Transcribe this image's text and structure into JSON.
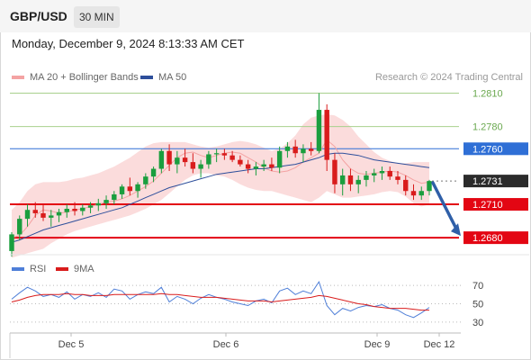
{
  "header": {
    "symbol": "GBP/USD",
    "timeframe": "30 MIN"
  },
  "timestamp": "Monday, December 9, 2024 8:13:33 AM CET",
  "copyright": "Research © 2024 Trading Central",
  "colors": {
    "bollinger": "#f4a3a3",
    "ma50": "#2e4f9b",
    "support": "#e30613",
    "resistance_line": "#a8d08d",
    "resistance_text": "#6aa84f",
    "pivot": "#2f6fd6",
    "candle_up": "#1a9e3e",
    "candle_down": "#d91c1c",
    "rsi": "#4f7fd8",
    "rsi_ma": "#d91c1c"
  },
  "chart_data": [
    {
      "type": "line",
      "title": "",
      "legend": [
        {
          "label": "MA 20 + Bollinger Bands",
          "color": "#f4a3a3"
        },
        {
          "label": "MA 50",
          "color": "#2e4f9b"
        }
      ],
      "x_ticks": [
        "Dec 5",
        "Dec 6",
        "Dec 9",
        "Dec 12"
      ],
      "ylim": [
        1.2655,
        1.2825
      ],
      "levels": [
        {
          "value": 1.281,
          "label": "1.2810",
          "kind": "resistance"
        },
        {
          "value": 1.278,
          "label": "1.2780",
          "kind": "resistance"
        },
        {
          "value": 1.276,
          "label": "1.2760",
          "kind": "pivot"
        },
        {
          "value": 1.2731,
          "label": "1.2731",
          "kind": "last"
        },
        {
          "value": 1.271,
          "label": "1.2710",
          "kind": "support"
        },
        {
          "value": 1.268,
          "label": "1.2680",
          "kind": "support"
        }
      ],
      "series": [
        {
          "values": [
            1.268,
            1.2682,
            1.269,
            1.27,
            1.2705,
            1.2704,
            1.2702,
            1.2703,
            1.2705,
            1.2706,
            1.2708,
            1.271,
            1.2712,
            1.2713,
            1.2715,
            1.2718,
            1.2722,
            1.2726,
            1.2731,
            1.2738,
            1.2745,
            1.2752,
            1.2756,
            1.2757,
            1.2754,
            1.2752,
            1.2754,
            1.2756,
            1.2757,
            1.2756,
            1.2752,
            1.2748,
            1.2743,
            1.274,
            1.2739,
            1.274,
            1.2743,
            1.2748,
            1.2752,
            1.2756,
            1.2768,
            1.2762,
            1.275,
            1.2742,
            1.2738,
            1.2737,
            1.2738,
            1.2739,
            1.274,
            1.2739,
            1.2736,
            1.2732,
            1.2729,
            1.273
          ]
        },
        {
          "values": [
            1.2676,
            1.2678,
            1.2681,
            1.2684,
            1.2687,
            1.2689,
            1.2691,
            1.2693,
            1.2695,
            1.2697,
            1.2699,
            1.2701,
            1.2703,
            1.2705,
            1.2707,
            1.271,
            1.2713,
            1.2716,
            1.2719,
            1.2722,
            1.2725,
            1.2727,
            1.2729,
            1.2731,
            1.2733,
            1.2735,
            1.2737,
            1.2738,
            1.2739,
            1.274,
            1.2741,
            1.2742,
            1.2742,
            1.2743,
            1.2744,
            1.2745,
            1.2746,
            1.2748,
            1.275,
            1.2752,
            1.2755,
            1.2756,
            1.2756,
            1.2755,
            1.2754,
            1.2752,
            1.275,
            1.2749,
            1.2748,
            1.2747,
            1.2746,
            1.2745,
            1.2744,
            1.2743
          ]
        }
      ],
      "bands_upper": [
        1.2705,
        1.2712,
        1.2722,
        1.2728,
        1.273,
        1.273,
        1.273,
        1.2731,
        1.2733,
        1.2734,
        1.2736,
        1.2738,
        1.2741,
        1.2744,
        1.2748,
        1.2752,
        1.2757,
        1.2762,
        1.2765,
        1.2766,
        1.2766,
        1.2766,
        1.2766,
        1.2764,
        1.2762,
        1.2761,
        1.2762,
        1.2764,
        1.2766,
        1.2767,
        1.2766,
        1.2764,
        1.2761,
        1.2758,
        1.276,
        1.2765,
        1.2772,
        1.2782,
        1.2788,
        1.279,
        1.2791,
        1.279,
        1.2786,
        1.278,
        1.2771,
        1.2764,
        1.2757,
        1.2752,
        1.2749,
        1.2747,
        1.2747,
        1.2748,
        1.2748,
        1.2748
      ],
      "bands_lower": [
        1.2662,
        1.2664,
        1.2666,
        1.2668,
        1.267,
        1.2675,
        1.2679,
        1.2683,
        1.2686,
        1.2688,
        1.269,
        1.2692,
        1.2694,
        1.2696,
        1.2698,
        1.27,
        1.2703,
        1.2706,
        1.271,
        1.2714,
        1.272,
        1.2726,
        1.2732,
        1.2736,
        1.2738,
        1.2738,
        1.2736,
        1.2735,
        1.2732,
        1.2728,
        1.2725,
        1.2723,
        1.2722,
        1.2722,
        1.272,
        1.2718,
        1.2716,
        1.2714,
        1.2712,
        1.2716,
        1.2722,
        1.2719,
        1.2716,
        1.2716,
        1.2717,
        1.2718,
        1.2719,
        1.2721,
        1.2722,
        1.2721,
        1.2717,
        1.2711,
        1.2708,
        1.271
      ],
      "candles": [
        [
          1.2668,
          1.2685,
          1.2663,
          1.2683
        ],
        [
          1.2683,
          1.27,
          1.2678,
          1.2697
        ],
        [
          1.2697,
          1.271,
          1.269,
          1.2705
        ],
        [
          1.2705,
          1.2712,
          1.2698,
          1.2702
        ],
        [
          1.2702,
          1.271,
          1.2695,
          1.2698
        ],
        [
          1.2698,
          1.2705,
          1.269,
          1.27
        ],
        [
          1.27,
          1.2706,
          1.2694,
          1.2703
        ],
        [
          1.2703,
          1.271,
          1.2698,
          1.2706
        ],
        [
          1.2706,
          1.2712,
          1.27,
          1.2704
        ],
        [
          1.2704,
          1.271,
          1.27,
          1.2707
        ],
        [
          1.2707,
          1.2712,
          1.2702,
          1.2709
        ],
        [
          1.2709,
          1.2715,
          1.2704,
          1.2711
        ],
        [
          1.2711,
          1.2718,
          1.2706,
          1.2714
        ],
        [
          1.2714,
          1.2722,
          1.271,
          1.2719
        ],
        [
          1.2719,
          1.2728,
          1.2715,
          1.2726
        ],
        [
          1.2726,
          1.2734,
          1.2718,
          1.2722
        ],
        [
          1.2722,
          1.273,
          1.2716,
          1.2728
        ],
        [
          1.2728,
          1.2738,
          1.2724,
          1.2735
        ],
        [
          1.2735,
          1.2744,
          1.273,
          1.2742
        ],
        [
          1.2742,
          1.276,
          1.2738,
          1.2758
        ],
        [
          1.2758,
          1.2764,
          1.274,
          1.2746
        ],
        [
          1.2746,
          1.2758,
          1.2738,
          1.2752
        ],
        [
          1.2752,
          1.276,
          1.2744,
          1.2748
        ],
        [
          1.2748,
          1.2756,
          1.2738,
          1.2742
        ],
        [
          1.2742,
          1.275,
          1.2734,
          1.2746
        ],
        [
          1.2746,
          1.2758,
          1.2742,
          1.2755
        ],
        [
          1.2755,
          1.276,
          1.2748,
          1.2756
        ],
        [
          1.2756,
          1.276,
          1.275,
          1.2754
        ],
        [
          1.2754,
          1.2758,
          1.2748,
          1.275
        ],
        [
          1.275,
          1.2754,
          1.2744,
          1.2746
        ],
        [
          1.2746,
          1.275,
          1.2738,
          1.2742
        ],
        [
          1.2742,
          1.2748,
          1.2736,
          1.2744
        ],
        [
          1.2744,
          1.275,
          1.274,
          1.2746
        ],
        [
          1.2746,
          1.2752,
          1.274,
          1.2743
        ],
        [
          1.2743,
          1.2762,
          1.2738,
          1.2758
        ],
        [
          1.2758,
          1.2766,
          1.2752,
          1.2762
        ],
        [
          1.2762,
          1.2768,
          1.2752,
          1.2756
        ],
        [
          1.2756,
          1.2764,
          1.2748,
          1.276
        ],
        [
          1.276,
          1.2766,
          1.2754,
          1.2758
        ],
        [
          1.2758,
          1.281,
          1.2756,
          1.2795
        ],
        [
          1.2795,
          1.28,
          1.274,
          1.275
        ],
        [
          1.275,
          1.2756,
          1.272,
          1.2728
        ],
        [
          1.2728,
          1.2742,
          1.2718,
          1.2736
        ],
        [
          1.2736,
          1.2742,
          1.2722,
          1.2728
        ],
        [
          1.2728,
          1.2736,
          1.272,
          1.2732
        ],
        [
          1.2732,
          1.274,
          1.2726,
          1.2736
        ],
        [
          1.2736,
          1.2742,
          1.273,
          1.2738
        ],
        [
          1.2738,
          1.2744,
          1.2732,
          1.274
        ],
        [
          1.274,
          1.2744,
          1.2732,
          1.2735
        ],
        [
          1.2735,
          1.274,
          1.2728,
          1.2732
        ],
        [
          1.2732,
          1.2736,
          1.2718,
          1.2722
        ],
        [
          1.2722,
          1.2728,
          1.2714,
          1.2718
        ],
        [
          1.2718,
          1.2726,
          1.2714,
          1.2722
        ],
        [
          1.2722,
          1.2732,
          1.2718,
          1.2731
        ]
      ],
      "forecast_arrow": {
        "from": 1.2731,
        "to": 1.268
      }
    },
    {
      "type": "line",
      "title": "",
      "legend": [
        {
          "label": "RSI",
          "color": "#4f7fd8"
        },
        {
          "label": "9MA",
          "color": "#d91c1c"
        }
      ],
      "y_ticks": [
        70,
        50,
        30
      ],
      "ylim": [
        20,
        80
      ],
      "series": [
        {
          "name": "RSI",
          "values": [
            55,
            62,
            68,
            64,
            58,
            60,
            57,
            63,
            55,
            60,
            58,
            62,
            57,
            66,
            64,
            55,
            60,
            63,
            61,
            68,
            52,
            58,
            55,
            50,
            56,
            60,
            57,
            55,
            52,
            50,
            48,
            53,
            55,
            51,
            64,
            67,
            60,
            64,
            61,
            74,
            48,
            38,
            45,
            42,
            46,
            48,
            47,
            49,
            45,
            43,
            38,
            35,
            40,
            46
          ]
        },
        {
          "name": "9MA",
          "values": [
            52,
            54,
            57,
            59,
            60,
            60,
            60,
            61,
            60,
            60,
            59,
            59,
            59,
            60,
            60,
            60,
            60,
            60,
            60,
            61,
            60,
            60,
            59,
            58,
            57,
            57,
            57,
            56,
            55,
            54,
            53,
            53,
            53,
            52,
            53,
            54,
            55,
            56,
            57,
            59,
            58,
            56,
            54,
            52,
            50,
            49,
            47,
            46,
            45,
            45,
            45,
            44,
            43,
            43
          ]
        }
      ]
    }
  ]
}
